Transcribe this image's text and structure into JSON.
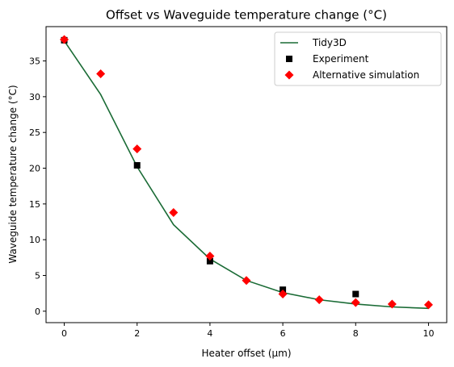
{
  "chart_data": {
    "type": "line",
    "title": "Offset vs Waveguide temperature change (°C)",
    "xlabel": "Heater offset (µm)",
    "ylabel": "Waveguide temperature change (°C)",
    "xlim": [
      -0.5,
      10.5
    ],
    "ylim": [
      -1.6,
      39.8
    ],
    "xticks": [
      0,
      2,
      4,
      6,
      8,
      10
    ],
    "yticks": [
      0,
      5,
      10,
      15,
      20,
      25,
      30,
      35
    ],
    "grid": false,
    "legend_position": "top-right",
    "series": [
      {
        "name": "Tidy3D",
        "kind": "line",
        "color": "#1a6b35",
        "x": [
          0,
          1,
          2,
          3,
          4,
          5,
          6,
          7,
          8,
          9,
          10
        ],
        "y": [
          37.8,
          30.3,
          20.2,
          12.1,
          7.3,
          4.3,
          2.6,
          1.6,
          1.0,
          0.6,
          0.4
        ]
      },
      {
        "name": "Experiment",
        "kind": "scatter",
        "marker": "square",
        "color": "#000000",
        "x": [
          0,
          2,
          4,
          6,
          8
        ],
        "y": [
          37.9,
          20.4,
          7.0,
          3.0,
          2.4
        ]
      },
      {
        "name": "Alternative simulation",
        "kind": "scatter",
        "marker": "diamond",
        "color": "#ff0000",
        "x": [
          0,
          1,
          2,
          3,
          4,
          5,
          6,
          7,
          8,
          9,
          10
        ],
        "y": [
          38.0,
          33.2,
          22.7,
          13.8,
          7.7,
          4.3,
          2.4,
          1.6,
          1.2,
          1.0,
          0.9
        ]
      }
    ]
  }
}
